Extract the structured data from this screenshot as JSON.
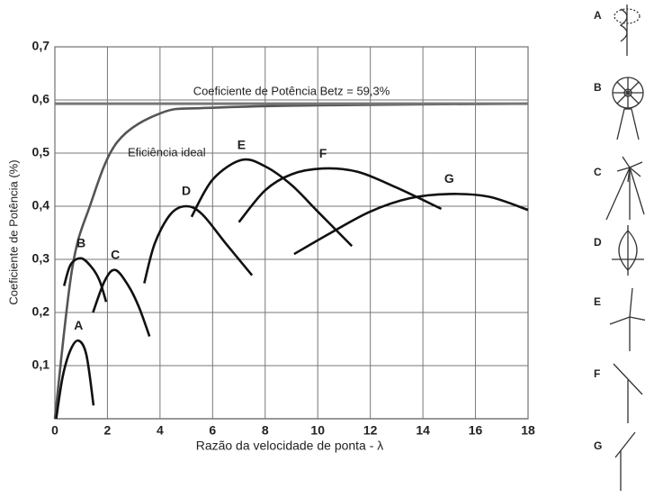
{
  "chart_data": {
    "type": "line",
    "xlabel": "Razão  da velocidade de ponta - λ",
    "ylabel": "Coeficiente de Potência (%)",
    "xlim": [
      0,
      18
    ],
    "ylim": [
      0,
      0.7
    ],
    "xticks": [
      0,
      2,
      4,
      6,
      8,
      10,
      12,
      14,
      16,
      18
    ],
    "yticks": [
      {
        "value": 0.1,
        "label": "0,1"
      },
      {
        "value": 0.2,
        "label": "0,2"
      },
      {
        "value": 0.3,
        "label": "0,3"
      },
      {
        "value": 0.4,
        "label": "0,4"
      },
      {
        "value": 0.5,
        "label": "0,5"
      },
      {
        "value": 0.6,
        "label": "0,6"
      },
      {
        "value": 0.7,
        "label": "0,7"
      }
    ],
    "grid": true,
    "series": [
      {
        "name": "Eficiência ideal",
        "color": "#555555",
        "x": [
          0,
          0.65,
          1.33,
          2.36,
          4.07,
          5.8,
          10,
          18
        ],
        "values": [
          0,
          0.28,
          0.4,
          0.52,
          0.576,
          0.585,
          0.59,
          0.593
        ]
      },
      {
        "name": "Coeficiente de Potência Betz = 59,3%",
        "color": "#777777",
        "x": [
          0,
          18
        ],
        "values": [
          0.593,
          0.593
        ]
      },
      {
        "name": "A",
        "color": "#111111",
        "x": [
          0.05,
          0.3,
          0.6,
          0.9,
          1.2,
          1.47
        ],
        "values": [
          0,
          0.08,
          0.13,
          0.147,
          0.12,
          0.025
        ]
      },
      {
        "name": "B",
        "color": "#111111",
        "x": [
          0.35,
          0.6,
          1.0,
          1.4,
          1.7,
          1.95
        ],
        "values": [
          0.25,
          0.29,
          0.302,
          0.285,
          0.26,
          0.22
        ]
      },
      {
        "name": "C",
        "color": "#111111",
        "x": [
          1.45,
          1.9,
          2.3,
          2.8,
          3.2,
          3.6
        ],
        "values": [
          0.2,
          0.26,
          0.28,
          0.25,
          0.21,
          0.155
        ]
      },
      {
        "name": "D",
        "color": "#111111",
        "x": [
          3.4,
          3.8,
          4.4,
          5.0,
          5.6,
          6.5,
          7.5
        ],
        "values": [
          0.255,
          0.33,
          0.385,
          0.4,
          0.385,
          0.33,
          0.27
        ]
      },
      {
        "name": "E",
        "color": "#111111",
        "x": [
          5.2,
          6.0,
          7.1,
          8.0,
          9.0,
          10.0,
          11.3
        ],
        "values": [
          0.38,
          0.45,
          0.487,
          0.475,
          0.44,
          0.39,
          0.325
        ]
      },
      {
        "name": "F",
        "color": "#111111",
        "x": [
          7.0,
          8.0,
          9.0,
          10.2,
          11.5,
          13.0,
          14.7
        ],
        "values": [
          0.37,
          0.43,
          0.46,
          0.471,
          0.465,
          0.435,
          0.395
        ]
      },
      {
        "name": "G",
        "color": "#111111",
        "x": [
          9.1,
          10.5,
          12,
          13.5,
          15,
          16.5,
          18
        ],
        "values": [
          0.31,
          0.35,
          0.39,
          0.415,
          0.423,
          0.418,
          0.393
        ]
      }
    ]
  }
}
